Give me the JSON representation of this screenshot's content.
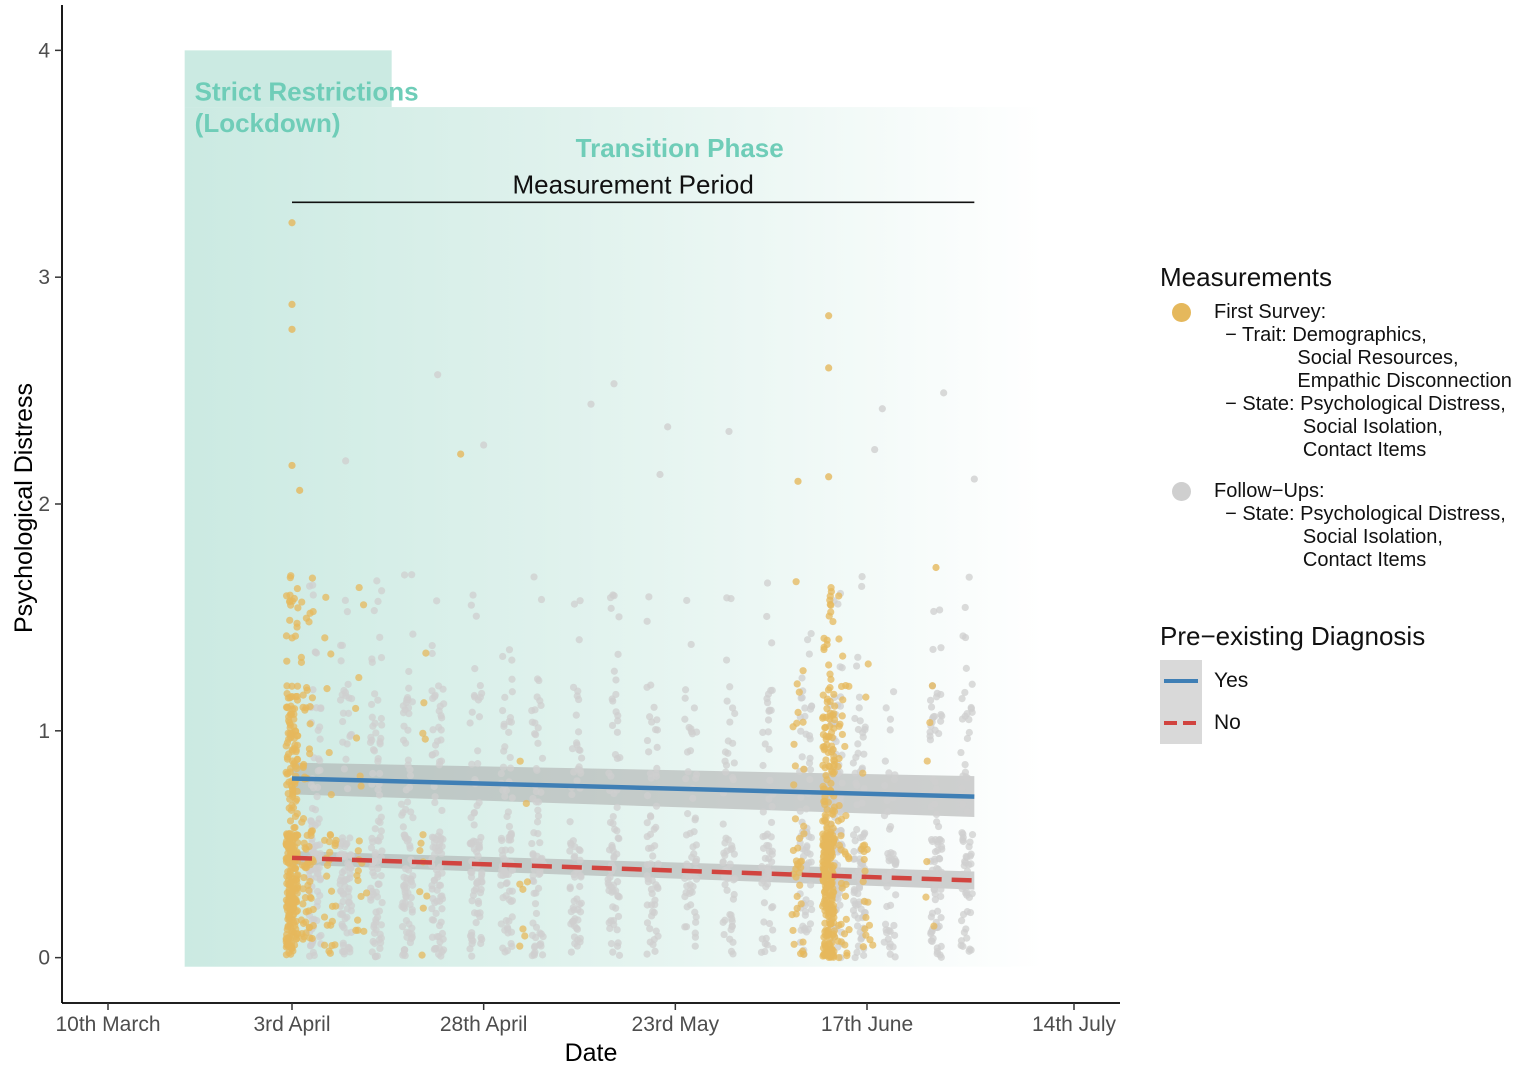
{
  "chart_data": {
    "type": "scatter",
    "xlabel": "Date",
    "ylabel": "Psychological Distress",
    "x_ticks": [
      "10th March",
      "3rd April",
      "28th April",
      "23rd May",
      "17th June",
      "14th July"
    ],
    "x_tick_dates": [
      "2020-03-10",
      "2020-04-03",
      "2020-04-28",
      "2020-05-23",
      "2020-06-17",
      "2020-07-14"
    ],
    "xlim": [
      "2020-03-04",
      "2020-07-20"
    ],
    "y_ticks": [
      0,
      1,
      2,
      3,
      4
    ],
    "ylim": [
      -0.2,
      4.2
    ],
    "grid": false,
    "annotations": {
      "phase_strict": [
        "Strict Restrictions",
        "(Lockdown)"
      ],
      "phase_transition": "Transition Phase",
      "measurement_period": "Measurement Period",
      "strict_start": "2020-03-20",
      "strict_end": "2020-04-16",
      "transition_end": "2020-07-10",
      "period_start": "2020-04-03",
      "period_end": "2020-07-01"
    },
    "series": [
      {
        "group": "measurements",
        "label": "First Survey:\n  − Trait: Demographics,\n               Social Resources,\n               Empathic Disconnection\n  − State: Psychological Distress,\n                Social Isolation,\n                Contact Items",
        "color": "#e5b85c",
        "clusters": [
          {
            "date": "2020-04-03",
            "count": 300
          },
          {
            "date": "2020-04-05",
            "count": 70
          },
          {
            "date": "2020-04-08",
            "count": 30
          },
          {
            "date": "2020-04-12",
            "count": 20
          },
          {
            "date": "2020-04-20",
            "count": 12
          },
          {
            "date": "2020-05-03",
            "count": 8
          },
          {
            "date": "2020-06-08",
            "count": 40
          },
          {
            "date": "2020-06-12",
            "count": 300
          },
          {
            "date": "2020-06-14",
            "count": 40
          },
          {
            "date": "2020-06-17",
            "count": 20
          },
          {
            "date": "2020-06-25",
            "count": 6
          }
        ],
        "points": [
          {
            "x": "2020-04-03",
            "y": 3.24
          },
          {
            "x": "2020-04-03",
            "y": 2.88
          },
          {
            "x": "2020-04-03",
            "y": 2.77
          },
          {
            "x": "2020-04-03",
            "y": 2.17
          },
          {
            "x": "2020-04-04",
            "y": 2.06
          },
          {
            "x": "2020-04-25",
            "y": 2.22
          },
          {
            "x": "2020-06-12",
            "y": 2.83
          },
          {
            "x": "2020-06-12",
            "y": 2.6
          },
          {
            "x": "2020-06-12",
            "y": 2.12
          },
          {
            "x": "2020-06-26",
            "y": 1.72
          },
          {
            "x": "2020-06-08",
            "y": 2.1
          }
        ]
      },
      {
        "group": "measurements",
        "label": "Follow−Ups:\n  − State: Psychological Distress,\n                Social Isolation,\n                Contact Items",
        "color": "#cfcfcf",
        "clusters": [
          {
            "date": "2020-04-06",
            "count": 90
          },
          {
            "date": "2020-04-10",
            "count": 90
          },
          {
            "date": "2020-04-14",
            "count": 90
          },
          {
            "date": "2020-04-18",
            "count": 90
          },
          {
            "date": "2020-04-22",
            "count": 90
          },
          {
            "date": "2020-04-27",
            "count": 80
          },
          {
            "date": "2020-05-01",
            "count": 80
          },
          {
            "date": "2020-05-05",
            "count": 70
          },
          {
            "date": "2020-05-10",
            "count": 70
          },
          {
            "date": "2020-05-15",
            "count": 70
          },
          {
            "date": "2020-05-20",
            "count": 60
          },
          {
            "date": "2020-05-25",
            "count": 60
          },
          {
            "date": "2020-05-30",
            "count": 60
          },
          {
            "date": "2020-06-04",
            "count": 60
          },
          {
            "date": "2020-06-09",
            "count": 70
          },
          {
            "date": "2020-06-13",
            "count": 90
          },
          {
            "date": "2020-06-16",
            "count": 90
          },
          {
            "date": "2020-06-20",
            "count": 50
          },
          {
            "date": "2020-06-26",
            "count": 90
          },
          {
            "date": "2020-06-30",
            "count": 70
          }
        ],
        "points": [
          {
            "x": "2020-04-22",
            "y": 2.57
          },
          {
            "x": "2020-05-15",
            "y": 2.53
          },
          {
            "x": "2020-05-12",
            "y": 2.44
          },
          {
            "x": "2020-06-27",
            "y": 2.49
          },
          {
            "x": "2020-06-19",
            "y": 2.42
          },
          {
            "x": "2020-05-30",
            "y": 2.32
          },
          {
            "x": "2020-05-22",
            "y": 2.34
          },
          {
            "x": "2020-04-28",
            "y": 2.26
          },
          {
            "x": "2020-06-18",
            "y": 2.24
          },
          {
            "x": "2020-04-10",
            "y": 2.19
          },
          {
            "x": "2020-07-01",
            "y": 2.11
          },
          {
            "x": "2020-05-21",
            "y": 2.13
          }
        ]
      }
    ],
    "fit_lines": {
      "legend_title": "Pre−existing Diagnosis",
      "lines": [
        {
          "name": "Yes",
          "color": "#3f7fb5",
          "dash": false,
          "x": [
            "2020-04-03",
            "2020-07-01"
          ],
          "y": [
            0.79,
            0.71
          ],
          "ci_low": [
            0.72,
            0.62
          ],
          "ci_high": [
            0.86,
            0.8
          ]
        },
        {
          "name": "No",
          "color": "#d1443f",
          "dash": true,
          "x": [
            "2020-04-03",
            "2020-07-01"
          ],
          "y": [
            0.44,
            0.34
          ],
          "ci_low": [
            0.41,
            0.3
          ],
          "ci_high": [
            0.47,
            0.38
          ]
        }
      ]
    },
    "legend": {
      "title": "Measurements",
      "placement": "right"
    }
  }
}
